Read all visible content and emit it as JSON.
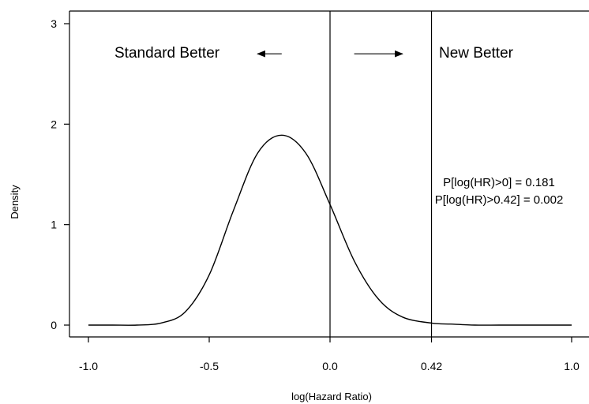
{
  "chart_data": {
    "type": "line",
    "title": "",
    "xlabel": "log(Hazard Ratio)",
    "ylabel": "Density",
    "xlim": [
      -1.0,
      1.0
    ],
    "ylim": [
      0,
      3
    ],
    "x_ticks": [
      -1.0,
      -0.5,
      0.0,
      0.42,
      1.0
    ],
    "x_tick_labels": [
      "-1.0",
      "-0.5",
      "0.0",
      "0.42",
      "1.0"
    ],
    "y_ticks": [
      0,
      1,
      2,
      3
    ],
    "y_tick_labels": [
      "0",
      "1",
      "2",
      "3"
    ],
    "grid": false,
    "series": [
      {
        "x": [
          -1.0,
          -0.9,
          -0.8,
          -0.7,
          -0.6,
          -0.5,
          -0.4,
          -0.3,
          -0.2,
          -0.1,
          0.0,
          0.1,
          0.2,
          0.3,
          0.42,
          0.5,
          0.6,
          0.7,
          0.8,
          0.9,
          1.0
        ],
        "y": [
          0.0,
          0.0,
          0.0,
          0.02,
          0.13,
          0.5,
          1.14,
          1.71,
          1.89,
          1.71,
          1.2,
          0.64,
          0.26,
          0.08,
          0.02,
          0.01,
          0.0,
          0.0,
          0.0,
          0.0,
          0.0
        ]
      }
    ],
    "vertical_lines": [
      0.0,
      0.42
    ],
    "annotations": {
      "left_label": "Standard Better",
      "right_label": "New Better",
      "prob_line_1": "P[log(HR)>0] = 0.181",
      "prob_line_2": "P[log(HR)>0.42] = 0.002"
    },
    "arrows": {
      "left": {
        "from": -0.2,
        "to": -0.3,
        "y": 2.7
      },
      "right": {
        "from": 0.1,
        "to": 0.3,
        "y": 2.7
      }
    }
  }
}
